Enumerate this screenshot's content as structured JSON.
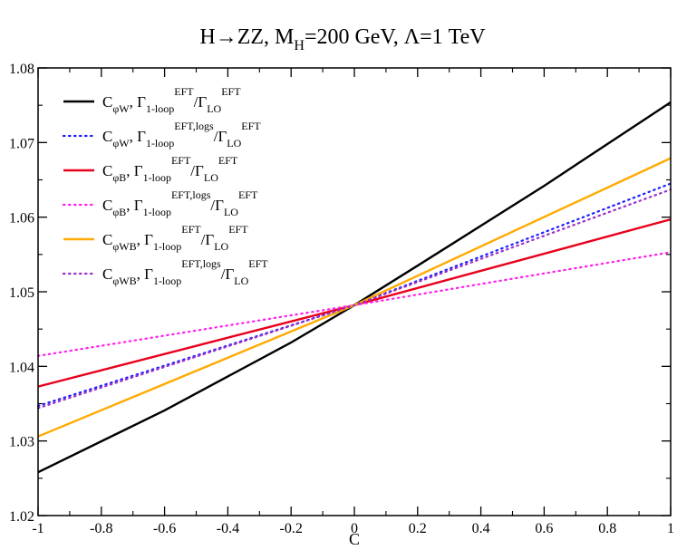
{
  "chart_data": {
    "type": "line",
    "title": {
      "main": "H→ZZ, M",
      "sub": "H",
      "rest": "=200 GeV, Λ=1 TeV"
    },
    "xlabel": "C",
    "ylabel": "",
    "xlim": [
      -1,
      1
    ],
    "ylim": [
      1.02,
      1.08
    ],
    "xticks": [
      -1,
      -0.8,
      -0.6,
      -0.4,
      -0.2,
      0,
      0.2,
      0.4,
      0.6,
      0.8,
      1
    ],
    "xtick_labels": [
      "-1",
      "-0.8",
      "-0.6",
      "-0.4",
      "-0.2",
      "0",
      "0.2",
      "0.4",
      "0.6",
      "0.8",
      "1"
    ],
    "yticks": [
      1.02,
      1.03,
      1.04,
      1.05,
      1.06,
      1.07,
      1.08
    ],
    "ytick_labels": [
      "1.02",
      "1.03",
      "1.04",
      "1.05",
      "1.06",
      "1.07",
      "1.08"
    ],
    "legend_position": "top-left",
    "series": [
      {
        "name": "C_phiW 1-loop",
        "coef": "φW",
        "num_sup": "EFT",
        "color": "#000000",
        "dash": "solid",
        "x": [
          -1,
          -0.6,
          -0.2,
          0,
          0.2,
          0.6,
          1
        ],
        "y": [
          1.0258,
          1.0341,
          1.0432,
          1.0482,
          1.0535,
          1.0642,
          1.0754
        ]
      },
      {
        "name": "C_phiW 1-loop logs",
        "coef": "φW",
        "num_sup": "EFT,logs",
        "color": "#1f1fff",
        "dash": "dotted",
        "x": [
          -1,
          0,
          1
        ],
        "y": [
          1.0347,
          1.0482,
          1.0645
        ]
      },
      {
        "name": "C_phiB 1-loop",
        "coef": "φB",
        "num_sup": "EFT",
        "color": "#e8001c",
        "dash": "solid",
        "x": [
          -1,
          0,
          1
        ],
        "y": [
          1.0373,
          1.0482,
          1.0597
        ]
      },
      {
        "name": "C_phiB 1-loop logs",
        "coef": "φB",
        "num_sup": "EFT,logs",
        "color": "#ff22ee",
        "dash": "dotted",
        "x": [
          -1,
          0,
          1
        ],
        "y": [
          1.0414,
          1.0482,
          1.0553
        ]
      },
      {
        "name": "C_phiWB 1-loop",
        "coef": "φWB",
        "num_sup": "EFT",
        "color": "#ffaa00",
        "dash": "solid",
        "x": [
          -1,
          0,
          1
        ],
        "y": [
          1.0306,
          1.0482,
          1.0679
        ]
      },
      {
        "name": "C_phiWB 1-loop logs",
        "coef": "φWB",
        "num_sup": "EFT,logs",
        "color": "#9b30c8",
        "dash": "dotted",
        "x": [
          -1,
          0,
          1
        ],
        "y": [
          1.0344,
          1.0482,
          1.0637
        ]
      }
    ],
    "legend_text": {
      "C": "C",
      "comma": ", ",
      "gamma": "Γ",
      "loop_sub": "1-loop",
      "slash": "/",
      "lo_sub": "LO",
      "den_sup": "EFT"
    }
  }
}
